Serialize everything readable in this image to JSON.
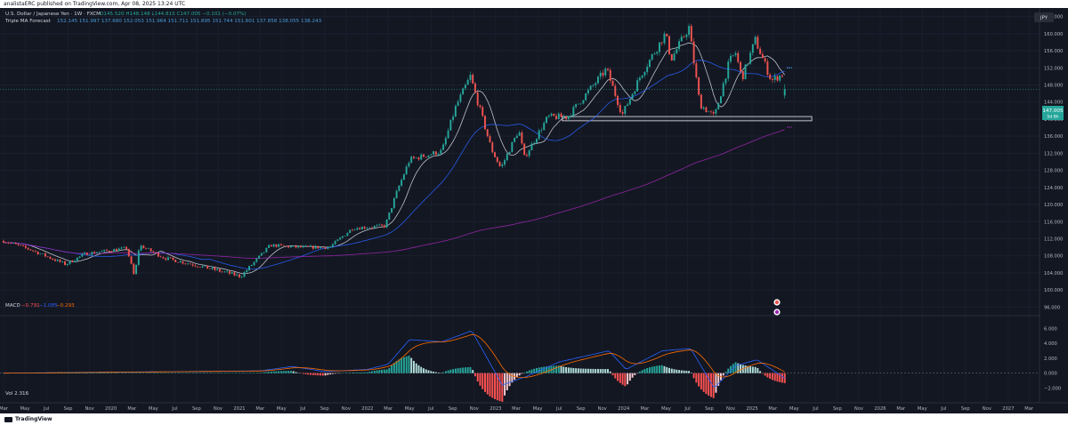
{
  "header": {
    "publisher_line": "analistaERC published on TradingView.com, Apr 08, 2025 13:24 UTC"
  },
  "footer": {
    "brand": "TradingView"
  },
  "legend": {
    "symbol": "U.S. Dollar / Japanese Yen · 1W · FXCM",
    "ohlc": "O145.520 H148.148 L144.815 C147.005 −0.101 (−0.07%)",
    "indicator_name": "Triple MA Forecast",
    "indicator_values": "152.145 151.997 137.680 152.053 151.964 151.711 151.895 151.744 151.601 137.858 138.055 138.243",
    "macd_label": "MACD",
    "macd_values": [
      {
        "text": "−0.791",
        "color": "#ff5252"
      },
      {
        "text": "−1.085",
        "color": "#2962ff"
      },
      {
        "text": "−0.293",
        "color": "#ff6d00"
      }
    ],
    "vol_label": "Vol 2.316"
  },
  "price_axis": {
    "currency": "JPY",
    "labels": [
      "164.000",
      "160.000",
      "156.000",
      "152.000",
      "148.000",
      "144.000",
      "140.000",
      "136.000",
      "132.000",
      "128.000",
      "124.000",
      "120.000",
      "116.000",
      "112.000",
      "108.000",
      "104.000",
      "100.000",
      "96.000"
    ],
    "current_price": "147.005",
    "current_time_left": "5d 8h"
  },
  "macd_axis": {
    "labels": [
      "6.000",
      "4.000",
      "2.000",
      "0.000",
      "−2.000"
    ]
  },
  "time_axis": {
    "labels": [
      "Mar",
      "May",
      "Jul",
      "Sep",
      "Nov",
      "2020",
      "Mar",
      "May",
      "Jul",
      "Sep",
      "Nov",
      "2021",
      "Mar",
      "May",
      "Jul",
      "Sep",
      "Nov",
      "2022",
      "Mar",
      "May",
      "Jul",
      "Sep",
      "Nov",
      "2023",
      "Mar",
      "May",
      "Jul",
      "Sep",
      "Nov",
      "2024",
      "Mar",
      "May",
      "Jul",
      "Sep",
      "Nov",
      "2025",
      "Mar",
      "May",
      "Jul",
      "Sep",
      "Nov",
      "2026",
      "Mar",
      "May",
      "Jul",
      "Sep",
      "Nov",
      "2027",
      "Mar"
    ]
  },
  "colors": {
    "background": "#131722",
    "up": "#26a69a",
    "down": "#ef5350",
    "ma_white": "#d1d4dc",
    "ma_blue": "#2962ff",
    "ma_purple": "#9c27b0",
    "macd_line": "#2962ff",
    "signal_line": "#ff6d00",
    "label_bg": "#26a69a"
  },
  "chart_data": {
    "type": "candlestick",
    "symbol": "USD/JPY",
    "timeframe": "1W",
    "ylim": [
      94,
      166
    ],
    "xlim_date": [
      "2019-03-01",
      "2027-03-31"
    ],
    "anchors": [
      {
        "d": "2019-03-01",
        "p": 111.5
      },
      {
        "d": "2019-05-15",
        "p": 109.5
      },
      {
        "d": "2019-08-25",
        "p": 106.0
      },
      {
        "d": "2019-10-20",
        "p": 108.5
      },
      {
        "d": "2020-02-15",
        "p": 109.8
      },
      {
        "d": "2020-03-08",
        "p": 103.0
      },
      {
        "d": "2020-03-22",
        "p": 110.5
      },
      {
        "d": "2020-06-01",
        "p": 107.5
      },
      {
        "d": "2020-09-15",
        "p": 105.5
      },
      {
        "d": "2021-01-05",
        "p": 103.2
      },
      {
        "d": "2021-03-30",
        "p": 110.5
      },
      {
        "d": "2021-06-15",
        "p": 110.0
      },
      {
        "d": "2021-09-15",
        "p": 110.0
      },
      {
        "d": "2021-11-20",
        "p": 114.5
      },
      {
        "d": "2022-02-20",
        "p": 115.0
      },
      {
        "d": "2022-03-28",
        "p": 123.5
      },
      {
        "d": "2022-05-01",
        "p": 130.5
      },
      {
        "d": "2022-08-01",
        "p": 132.5
      },
      {
        "d": "2022-09-10",
        "p": 143.0
      },
      {
        "d": "2022-10-21",
        "p": 150.0
      },
      {
        "d": "2022-12-20",
        "p": 133.0
      },
      {
        "d": "2023-01-16",
        "p": 128.5
      },
      {
        "d": "2023-03-08",
        "p": 137.5
      },
      {
        "d": "2023-03-24",
        "p": 131.0
      },
      {
        "d": "2023-05-30",
        "p": 140.5
      },
      {
        "d": "2023-07-25",
        "p": 140.5
      },
      {
        "d": "2023-11-13",
        "p": 151.7
      },
      {
        "d": "2023-12-28",
        "p": 141.0
      },
      {
        "d": "2024-02-20",
        "p": 150.5
      },
      {
        "d": "2024-04-29",
        "p": 160.0
      },
      {
        "d": "2024-05-15",
        "p": 154.0
      },
      {
        "d": "2024-07-05",
        "p": 161.5
      },
      {
        "d": "2024-08-05",
        "p": 143.5
      },
      {
        "d": "2024-09-16",
        "p": 140.5
      },
      {
        "d": "2024-10-28",
        "p": 153.5
      },
      {
        "d": "2024-11-15",
        "p": 155.5
      },
      {
        "d": "2024-12-03",
        "p": 149.5
      },
      {
        "d": "2025-01-10",
        "p": 158.5
      },
      {
        "d": "2025-02-25",
        "p": 149.0
      },
      {
        "d": "2025-03-28",
        "p": 150.5
      },
      {
        "d": "2025-04-08",
        "p": 147.0
      }
    ],
    "last_bar": {
      "o": 145.52,
      "h": 148.148,
      "l": 144.815,
      "c": 147.005
    },
    "support_zone": {
      "from": "2023-07-10",
      "to": "2025-06-20",
      "low": 139.6,
      "high": 140.6
    },
    "forecast_points": [
      {
        "d": "2025-04-25",
        "p": 152.0
      },
      {
        "d": "2025-04-25",
        "p": 138.1
      }
    ],
    "macd_ylim": [
      -3.5,
      7.0
    ],
    "macd_anchors": [
      {
        "d": "2019-03-01",
        "v": 0.0
      },
      {
        "d": "2021-03-01",
        "v": 0.3
      },
      {
        "d": "2021-06-01",
        "v": 0.9
      },
      {
        "d": "2021-09-01",
        "v": 0.2
      },
      {
        "d": "2022-01-01",
        "v": 0.5
      },
      {
        "d": "2022-03-01",
        "v": 1.2
      },
      {
        "d": "2022-05-01",
        "v": 4.5
      },
      {
        "d": "2022-08-01",
        "v": 4.2
      },
      {
        "d": "2022-10-25",
        "v": 5.7
      },
      {
        "d": "2023-01-20",
        "v": -1.6
      },
      {
        "d": "2023-04-01",
        "v": -0.4
      },
      {
        "d": "2023-07-01",
        "v": 1.5
      },
      {
        "d": "2023-11-20",
        "v": 3.0
      },
      {
        "d": "2024-01-08",
        "v": 0.5
      },
      {
        "d": "2024-04-20",
        "v": 3.0
      },
      {
        "d": "2024-07-10",
        "v": 3.3
      },
      {
        "d": "2024-09-15",
        "v": -2.0
      },
      {
        "d": "2024-11-15",
        "v": 1.0
      },
      {
        "d": "2025-01-15",
        "v": 1.8
      },
      {
        "d": "2025-04-08",
        "v": -0.8
      }
    ]
  }
}
